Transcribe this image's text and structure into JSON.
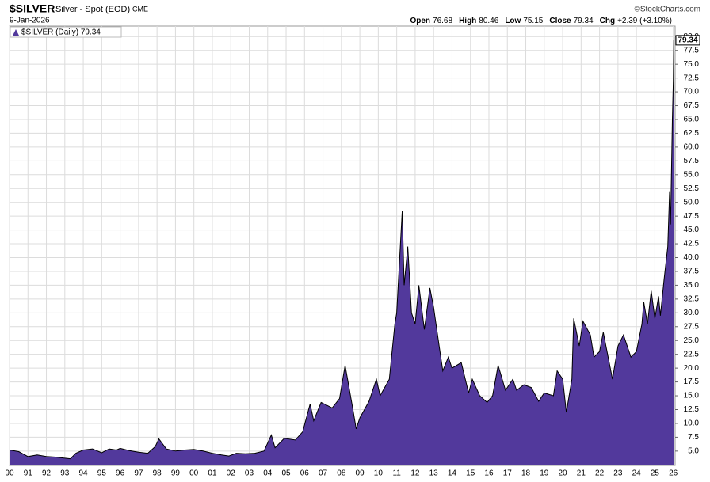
{
  "chart_data": {
    "type": "area",
    "symbol": "$SILVER",
    "title": "Silver - Spot (EOD)",
    "exchange": "CME",
    "date": "9-Jan-2026",
    "credit": "©StockCharts.com",
    "quote": [
      {
        "label": "Open",
        "value": "76.68"
      },
      {
        "label": "High",
        "value": "80.46"
      },
      {
        "label": "Low",
        "value": "75.15"
      },
      {
        "label": "Close",
        "value": "79.34"
      },
      {
        "label": "Chg",
        "value": "+2.39 (+3.10%)"
      }
    ],
    "legend": "$SILVER (Daily) 79.34",
    "price_label": "79.34",
    "color": "#52399c",
    "line_color": "#000000",
    "grid": true,
    "xlim": [
      1990,
      2026.1
    ],
    "ylim": [
      2.4,
      81.9
    ],
    "xticks": [
      {
        "value": 1990,
        "label": "90"
      },
      {
        "value": 1991,
        "label": "91"
      },
      {
        "value": 1992,
        "label": "92"
      },
      {
        "value": 1993,
        "label": "93"
      },
      {
        "value": 1994,
        "label": "94"
      },
      {
        "value": 1995,
        "label": "95"
      },
      {
        "value": 1996,
        "label": "96"
      },
      {
        "value": 1997,
        "label": "97"
      },
      {
        "value": 1998,
        "label": "98"
      },
      {
        "value": 1999,
        "label": "99"
      },
      {
        "value": 2000,
        "label": "00"
      },
      {
        "value": 2001,
        "label": "01"
      },
      {
        "value": 2002,
        "label": "02"
      },
      {
        "value": 2003,
        "label": "03"
      },
      {
        "value": 2004,
        "label": "04"
      },
      {
        "value": 2005,
        "label": "05"
      },
      {
        "value": 2006,
        "label": "06"
      },
      {
        "value": 2007,
        "label": "07"
      },
      {
        "value": 2008,
        "label": "08"
      },
      {
        "value": 2009,
        "label": "09"
      },
      {
        "value": 2010,
        "label": "10"
      },
      {
        "value": 2011,
        "label": "11"
      },
      {
        "value": 2012,
        "label": "12"
      },
      {
        "value": 2013,
        "label": "13"
      },
      {
        "value": 2014,
        "label": "14"
      },
      {
        "value": 2015,
        "label": "15"
      },
      {
        "value": 2016,
        "label": "16"
      },
      {
        "value": 2017,
        "label": "17"
      },
      {
        "value": 2018,
        "label": "18"
      },
      {
        "value": 2019,
        "label": "19"
      },
      {
        "value": 2020,
        "label": "20"
      },
      {
        "value": 2021,
        "label": "21"
      },
      {
        "value": 2022,
        "label": "22"
      },
      {
        "value": 2023,
        "label": "23"
      },
      {
        "value": 2024,
        "label": "24"
      },
      {
        "value": 2025,
        "label": "25"
      },
      {
        "value": 2026,
        "label": "26"
      }
    ],
    "yticks": [
      {
        "value": 5,
        "label": "5.0"
      },
      7.5,
      {
        "value": 10,
        "label": "10.0"
      },
      12.5,
      {
        "value": 15,
        "label": "15.0"
      },
      17.5,
      {
        "value": 20,
        "label": "20.0"
      },
      22.5,
      {
        "value": 25,
        "label": "25.0"
      },
      27.5,
      {
        "value": 30,
        "label": "30.0"
      },
      32.5,
      {
        "value": 35,
        "label": "35.0"
      },
      37.5,
      {
        "value": 40,
        "label": "40.0"
      },
      42.5,
      {
        "value": 45,
        "label": "45.0"
      },
      47.5,
      {
        "value": 50,
        "label": "50.0"
      },
      52.5,
      {
        "value": 55,
        "label": "55.0"
      },
      57.5,
      {
        "value": 60,
        "label": "60.0"
      },
      62.5,
      {
        "value": 65,
        "label": "65.0"
      },
      67.5,
      {
        "value": 70,
        "label": "70.0"
      },
      72.5,
      {
        "value": 75,
        "label": "75.0"
      },
      77.5,
      {
        "value": 80,
        "label": "80.0"
      }
    ],
    "x": [
      1990,
      1990.5,
      1991,
      1991.5,
      1992,
      1992.5,
      1993,
      1993.3,
      1993.6,
      1994,
      1994.5,
      1995,
      1995.4,
      1995.8,
      1996,
      1996.5,
      1997,
      1997.5,
      1997.9,
      1998.1,
      1998.5,
      1999,
      1999.5,
      2000,
      2000.5,
      2001,
      2001.5,
      2001.9,
      2002.3,
      2002.8,
      2003.3,
      2003.8,
      2004.2,
      2004.4,
      2004.9,
      2005.5,
      2005.9,
      2006.3,
      2006.5,
      2006.9,
      2007.5,
      2007.9,
      2008.2,
      2008.6,
      2008.8,
      2009,
      2009.5,
      2009.9,
      2010.1,
      2010.6,
      2010.9,
      2011,
      2011.3,
      2011.4,
      2011.6,
      2011.8,
      2012,
      2012.2,
      2012.5,
      2012.8,
      2013,
      2013.3,
      2013.5,
      2013.8,
      2014,
      2014.5,
      2014.9,
      2015.1,
      2015.5,
      2015.9,
      2016.2,
      2016.5,
      2016.9,
      2017.3,
      2017.5,
      2017.9,
      2018.3,
      2018.7,
      2019,
      2019.5,
      2019.7,
      2020,
      2020.2,
      2020.5,
      2020.6,
      2020.9,
      2021.1,
      2021.5,
      2021.7,
      2022,
      2022.2,
      2022.7,
      2023,
      2023.3,
      2023.7,
      2024,
      2024.3,
      2024.4,
      2024.6,
      2024.8,
      2025,
      2025.2,
      2025.3,
      2025.5,
      2025.7,
      2025.8,
      2025.85,
      2025.95,
      2026,
      2026.025
    ],
    "values": [
      5.2,
      4.9,
      4.0,
      4.3,
      4.0,
      3.9,
      3.7,
      3.6,
      4.6,
      5.2,
      5.4,
      4.7,
      5.4,
      5.2,
      5.5,
      5.1,
      4.8,
      4.6,
      5.8,
      7.2,
      5.4,
      5.0,
      5.2,
      5.3,
      5.0,
      4.6,
      4.3,
      4.1,
      4.6,
      4.5,
      4.6,
      5.0,
      7.9,
      5.6,
      7.3,
      7.0,
      8.5,
      13.5,
      10.5,
      13.8,
      12.8,
      14.5,
      20.5,
      13,
      9.0,
      11,
      14,
      18,
      15,
      18,
      28,
      30,
      48.5,
      35,
      42,
      30,
      28,
      35,
      27,
      34.5,
      31,
      24,
      19.5,
      22,
      20,
      21,
      15.5,
      18,
      15,
      13.8,
      15,
      20.5,
      16,
      18,
      16,
      17,
      16.5,
      14,
      15.5,
      15,
      19.5,
      18,
      12,
      18,
      29,
      24,
      28.5,
      26,
      22,
      23,
      26.5,
      18,
      24,
      26,
      22,
      23,
      28,
      32,
      28,
      34,
      29,
      33,
      29.5,
      36,
      42,
      52,
      46,
      65,
      72,
      79.34
    ]
  }
}
